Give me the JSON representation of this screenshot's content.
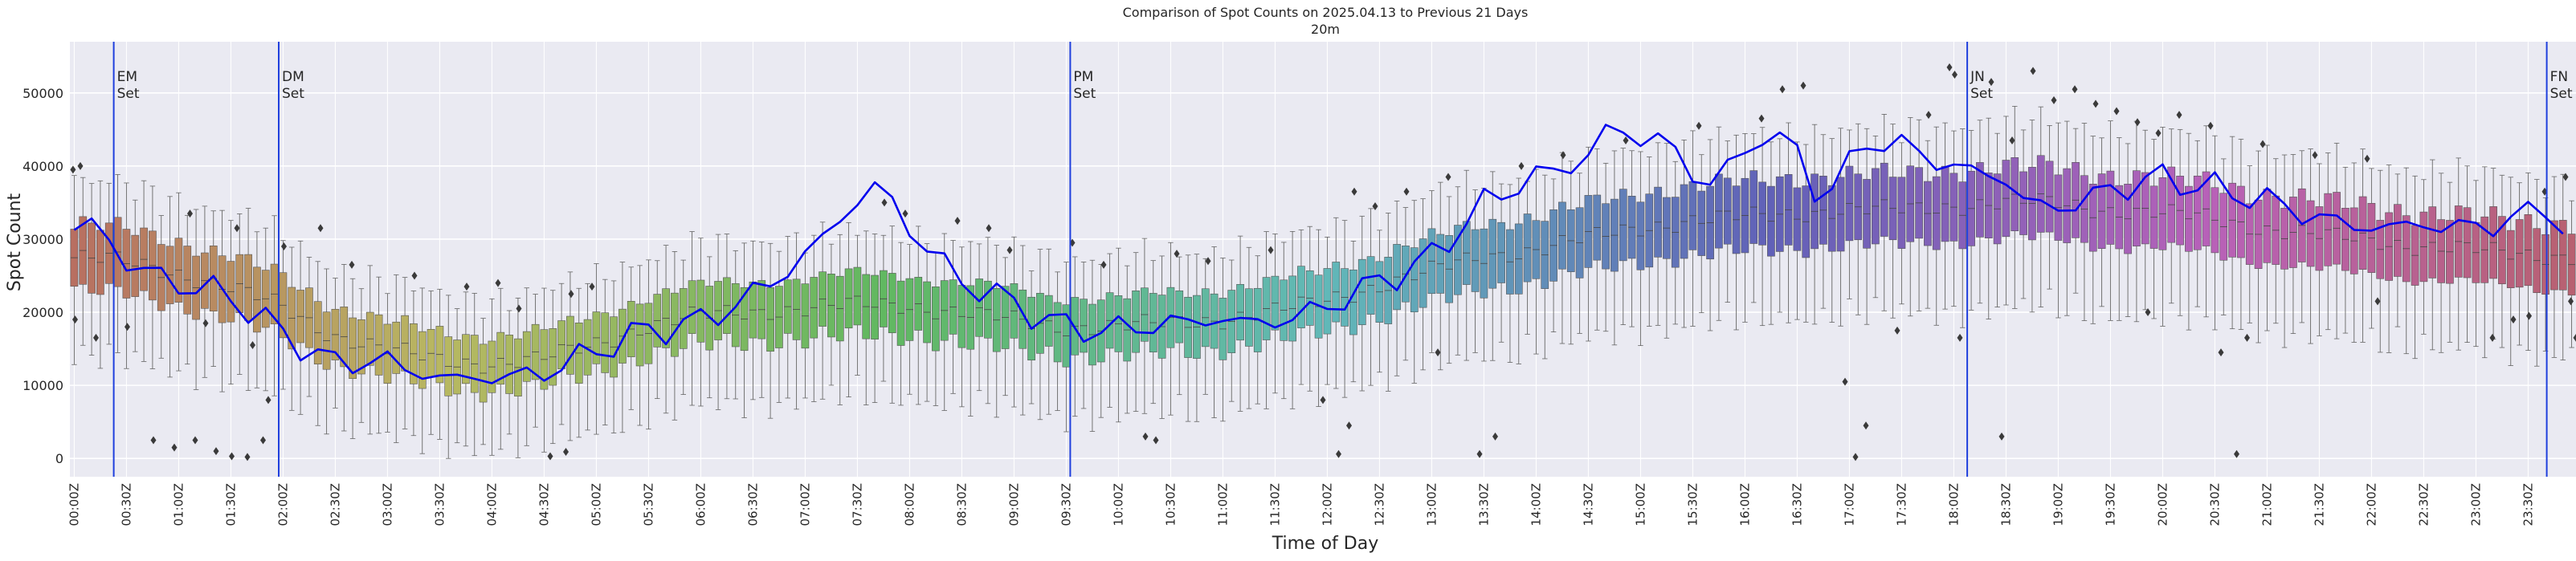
{
  "chart_data": {
    "type": "box",
    "title": "Comparison of Spot Counts on 2025.04.13 to Previous 21 Days",
    "subtitle": "20m",
    "xlabel": "Time of Day",
    "ylabel": "Spot Count",
    "ylim": [
      -2500,
      57000
    ],
    "yticks": [
      0,
      10000,
      20000,
      30000,
      40000,
      50000
    ],
    "ytick_labels": [
      "0",
      "10000",
      "20000",
      "30000",
      "40000",
      "50000"
    ],
    "xtick_labels": [
      "00:00Z",
      "00:30Z",
      "01:00Z",
      "01:30Z",
      "02:00Z",
      "02:30Z",
      "03:00Z",
      "03:30Z",
      "04:00Z",
      "04:30Z",
      "05:00Z",
      "05:30Z",
      "06:00Z",
      "06:30Z",
      "07:00Z",
      "07:30Z",
      "08:00Z",
      "08:30Z",
      "09:00Z",
      "09:30Z",
      "10:00Z",
      "10:30Z",
      "11:00Z",
      "11:30Z",
      "12:00Z",
      "12:30Z",
      "13:00Z",
      "13:30Z",
      "14:00Z",
      "14:30Z",
      "15:00Z",
      "15:30Z",
      "16:00Z",
      "16:30Z",
      "17:00Z",
      "17:30Z",
      "18:00Z",
      "18:30Z",
      "19:00Z",
      "19:30Z",
      "20:00Z",
      "20:30Z",
      "21:00Z",
      "21:30Z",
      "22:00Z",
      "22:30Z",
      "23:00Z",
      "23:30Z"
    ],
    "bins_per_day": 288,
    "bin_minutes": 5,
    "median_profile": {
      "hours": [
        0,
        0.5,
        1,
        1.5,
        2,
        2.5,
        3,
        3.5,
        4,
        4.5,
        5,
        5.5,
        6,
        6.5,
        7,
        7.5,
        8,
        8.5,
        9,
        9.5,
        10,
        10.5,
        11,
        11.5,
        12,
        12.5,
        13,
        13.5,
        14,
        14.5,
        15,
        15.5,
        16,
        16.5,
        17,
        17.5,
        18,
        18.5,
        19,
        19.5,
        20,
        20.5,
        21,
        21.5,
        22,
        22.5,
        23,
        23.5,
        24
      ],
      "values": [
        27500,
        27000,
        25500,
        23500,
        21000,
        17000,
        15000,
        13500,
        13000,
        13500,
        15500,
        18000,
        19500,
        20000,
        20500,
        21000,
        21000,
        20000,
        19000,
        18000,
        18000,
        18500,
        19000,
        20000,
        21500,
        23500,
        25500,
        27500,
        28500,
        30000,
        31500,
        32500,
        33000,
        33500,
        34000,
        34000,
        34500,
        35000,
        35000,
        34000,
        33500,
        33000,
        31500,
        30500,
        30000,
        29000,
        28500,
        28000,
        27500
      ]
    },
    "today_profile": {
      "name": "2025.04.13",
      "hours": [
        0,
        0.25,
        0.5,
        0.75,
        1,
        1.5,
        2,
        2.5,
        3,
        3.5,
        4,
        4.5,
        5,
        5.5,
        6,
        6.5,
        7,
        7.25,
        7.5,
        7.75,
        8,
        8.5,
        9,
        9.5,
        10,
        10.5,
        11,
        11.5,
        12,
        12.5,
        13,
        13.5,
        14,
        14.5,
        14.75,
        15,
        15.25,
        15.5,
        16,
        16.25,
        16.5,
        16.75,
        17,
        17.25,
        17.5,
        18,
        18.5,
        18.75,
        19,
        19.5,
        20,
        20.5,
        21,
        21.5,
        22,
        22.5,
        23,
        23.5,
        23.75,
        24
      ],
      "values": [
        31000,
        32500,
        27000,
        25500,
        24000,
        22500,
        17500,
        13000,
        13500,
        11000,
        11000,
        11500,
        14500,
        17500,
        18500,
        22000,
        27000,
        31000,
        34500,
        38000,
        32000,
        24500,
        21500,
        18000,
        17500,
        18500,
        19000,
        18500,
        20500,
        24000,
        27000,
        34500,
        38500,
        40500,
        46000,
        43000,
        45000,
        38000,
        40000,
        46000,
        42000,
        36000,
        39000,
        44000,
        43000,
        40000,
        38500,
        35000,
        34000,
        36500,
        38500,
        37000,
        35500,
        33000,
        31500,
        32000,
        31500,
        33000,
        35000,
        28000
      ]
    },
    "spread": {
      "iqr_half": 2500,
      "whisker": 6000
    },
    "outliers": [
      {
        "hour": 0.03,
        "value": 39500
      },
      {
        "hour": 0.1,
        "value": 40000
      },
      {
        "hour": 0.05,
        "value": 19000
      },
      {
        "hour": 0.25,
        "value": 16500
      },
      {
        "hour": 0.55,
        "value": 18000
      },
      {
        "hour": 0.8,
        "value": 2500
      },
      {
        "hour": 1.0,
        "value": 1500
      },
      {
        "hour": 1.2,
        "value": 2500
      },
      {
        "hour": 1.3,
        "value": 18500
      },
      {
        "hour": 1.15,
        "value": 33500
      },
      {
        "hour": 1.4,
        "value": 1000
      },
      {
        "hour": 1.55,
        "value": 300
      },
      {
        "hour": 1.6,
        "value": 31500
      },
      {
        "hour": 1.7,
        "value": 200
      },
      {
        "hour": 1.75,
        "value": 15500
      },
      {
        "hour": 1.85,
        "value": 2500
      },
      {
        "hour": 1.9,
        "value": 8000
      },
      {
        "hour": 2.05,
        "value": 29000
      },
      {
        "hour": 2.4,
        "value": 31500
      },
      {
        "hour": 2.7,
        "value": 26500
      },
      {
        "hour": 3.3,
        "value": 25000
      },
      {
        "hour": 3.8,
        "value": 23500
      },
      {
        "hour": 4.1,
        "value": 24000
      },
      {
        "hour": 4.3,
        "value": 20500
      },
      {
        "hour": 4.6,
        "value": 300
      },
      {
        "hour": 4.75,
        "value": 900
      },
      {
        "hour": 4.8,
        "value": 22500
      },
      {
        "hour": 5.0,
        "value": 23500
      },
      {
        "hour": 7.8,
        "value": 35000
      },
      {
        "hour": 8.0,
        "value": 33500
      },
      {
        "hour": 8.5,
        "value": 32500
      },
      {
        "hour": 8.8,
        "value": 31500
      },
      {
        "hour": 9.0,
        "value": 28500
      },
      {
        "hour": 9.6,
        "value": 29500
      },
      {
        "hour": 9.9,
        "value": 26500
      },
      {
        "hour": 10.3,
        "value": 3000
      },
      {
        "hour": 10.4,
        "value": 2500
      },
      {
        "hour": 10.6,
        "value": 28000
      },
      {
        "hour": 10.9,
        "value": 27000
      },
      {
        "hour": 11.5,
        "value": 28500
      },
      {
        "hour": 12.0,
        "value": 8000
      },
      {
        "hour": 12.15,
        "value": 600
      },
      {
        "hour": 12.25,
        "value": 4500
      },
      {
        "hour": 12.3,
        "value": 36500
      },
      {
        "hour": 12.5,
        "value": 34500
      },
      {
        "hour": 12.8,
        "value": 36500
      },
      {
        "hour": 13.1,
        "value": 14500
      },
      {
        "hour": 13.2,
        "value": 38500
      },
      {
        "hour": 13.5,
        "value": 600
      },
      {
        "hour": 13.65,
        "value": 3000
      },
      {
        "hour": 13.9,
        "value": 40000
      },
      {
        "hour": 14.3,
        "value": 41500
      },
      {
        "hour": 14.9,
        "value": 43500
      },
      {
        "hour": 15.6,
        "value": 45500
      },
      {
        "hour": 16.2,
        "value": 46500
      },
      {
        "hour": 16.4,
        "value": 50500
      },
      {
        "hour": 16.6,
        "value": 51000
      },
      {
        "hour": 17.0,
        "value": 10500
      },
      {
        "hour": 17.1,
        "value": 200
      },
      {
        "hour": 17.2,
        "value": 4500
      },
      {
        "hour": 17.5,
        "value": 17500
      },
      {
        "hour": 17.8,
        "value": 47000
      },
      {
        "hour": 18.0,
        "value": 53500
      },
      {
        "hour": 18.05,
        "value": 52500
      },
      {
        "hour": 18.1,
        "value": 16500
      },
      {
        "hour": 18.4,
        "value": 51500
      },
      {
        "hour": 18.5,
        "value": 3000
      },
      {
        "hour": 18.6,
        "value": 43500
      },
      {
        "hour": 18.8,
        "value": 53000
      },
      {
        "hour": 19.0,
        "value": 49000
      },
      {
        "hour": 19.2,
        "value": 50500
      },
      {
        "hour": 19.4,
        "value": 48500
      },
      {
        "hour": 19.6,
        "value": 47500
      },
      {
        "hour": 19.8,
        "value": 46000
      },
      {
        "hour": 19.9,
        "value": 20000
      },
      {
        "hour": 20.0,
        "value": 44500
      },
      {
        "hour": 20.2,
        "value": 47000
      },
      {
        "hour": 20.5,
        "value": 45500
      },
      {
        "hour": 20.6,
        "value": 14500
      },
      {
        "hour": 20.75,
        "value": 600
      },
      {
        "hour": 20.85,
        "value": 16500
      },
      {
        "hour": 21.0,
        "value": 43000
      },
      {
        "hour": 21.5,
        "value": 41500
      },
      {
        "hour": 22.0,
        "value": 41000
      },
      {
        "hour": 22.1,
        "value": 21500
      },
      {
        "hour": 23.2,
        "value": 16500
      },
      {
        "hour": 23.4,
        "value": 19000
      },
      {
        "hour": 23.55,
        "value": 19500
      },
      {
        "hour": 23.7,
        "value": 36500
      },
      {
        "hour": 23.9,
        "value": 38500
      },
      {
        "hour": 23.95,
        "value": 21500
      },
      {
        "hour": 24.0,
        "value": 16500
      }
    ],
    "events": [
      {
        "hour": 0.42,
        "label_line1": "EM",
        "label_line2": "Set"
      },
      {
        "hour": 2.0,
        "label_line1": "DM",
        "label_line2": "Set"
      },
      {
        "hour": 9.58,
        "label_line1": "PM",
        "label_line2": "Set"
      },
      {
        "hour": 18.17,
        "label_line1": "JN",
        "label_line2": "Set"
      },
      {
        "hour": 23.72,
        "label_line1": "FN",
        "label_line2": "Set"
      }
    ],
    "grid": true,
    "background_color": "#eaeaf2",
    "today_line_color": "#0000ee",
    "event_line_color": "#1f3fdd"
  }
}
